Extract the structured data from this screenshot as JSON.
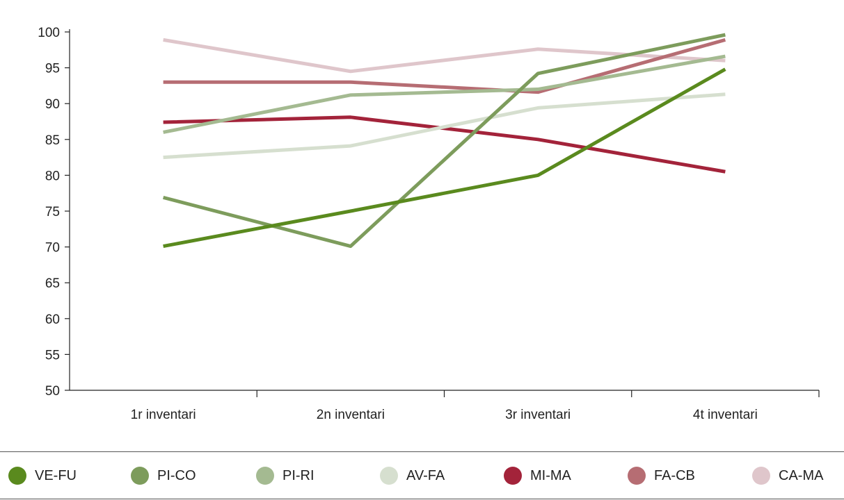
{
  "chart_data": {
    "type": "line",
    "title": "",
    "xlabel": "",
    "ylabel": "",
    "categories": [
      "1r inventari",
      "2n inventari",
      "3r inventari",
      "4t inventari"
    ],
    "ylim": [
      50,
      100
    ],
    "yticks": [
      50,
      55,
      60,
      65,
      70,
      75,
      80,
      85,
      90,
      95,
      100
    ],
    "grid": false,
    "legend_position": "bottom",
    "series": [
      {
        "name": "VE-FU",
        "color": "#5a8a1e",
        "values": [
          70.1,
          75.0,
          80.0,
          94.8
        ]
      },
      {
        "name": "PI-CO",
        "color": "#7d9c5c",
        "values": [
          76.9,
          70.1,
          94.2,
          99.6
        ]
      },
      {
        "name": "PI-RI",
        "color": "#a4ba91",
        "values": [
          86.0,
          91.2,
          92.0,
          96.6
        ]
      },
      {
        "name": "AV-FA",
        "color": "#d6dfcf",
        "values": [
          82.5,
          84.1,
          89.4,
          91.3
        ]
      },
      {
        "name": "MI-MA",
        "color": "#a3233a",
        "values": [
          87.4,
          88.1,
          85.0,
          80.5
        ]
      },
      {
        "name": "FA-CB",
        "color": "#b66d73",
        "values": [
          93.0,
          93.0,
          91.6,
          98.9
        ]
      },
      {
        "name": "CA-MA",
        "color": "#dfc6cb",
        "values": [
          98.9,
          94.5,
          97.6,
          96.0
        ]
      }
    ]
  }
}
